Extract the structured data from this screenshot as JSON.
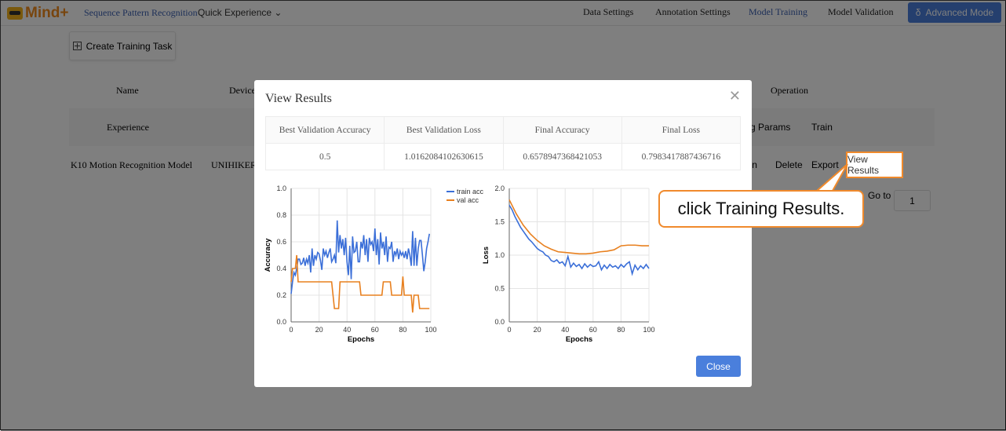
{
  "app": {
    "logo_text": "Mind+",
    "nav_left": [
      "Sequence Pattern Recognition",
      "Quick Experience"
    ],
    "nav_steps": [
      "Data Settings",
      "Annotation Settings",
      "Model Training",
      "Model Validation"
    ],
    "active_step": "Model Training",
    "advanced_label": "Advanced Mode",
    "accent": "#4a7fdc"
  },
  "page": {
    "create_label": "Create Training Task",
    "headers": {
      "name": "Name",
      "device": "Device",
      "operation": "Operation"
    },
    "rows": [
      {
        "name": "Experience",
        "ops": [
          "Config Params",
          "Train"
        ]
      },
      {
        "name": "K10 Motion Recognition Model",
        "device": "UNIHIKER",
        "ops": [
          "Train",
          "Delete",
          "Export",
          "View Results"
        ]
      }
    ],
    "goto_label": "Go to",
    "goto_value": "1"
  },
  "modal": {
    "title": "View Results",
    "columns": [
      "Best Validation Accuracy",
      "Best Validation Loss",
      "Final Accuracy",
      "Final Loss"
    ],
    "values": [
      "0.5",
      "1.0162084102630615",
      "0.6578947368421053",
      "0.7983417887436716"
    ],
    "close_label": "Close"
  },
  "callout": {
    "text": "click Training Results.",
    "color": "#f08a2c"
  },
  "chart_data": [
    {
      "type": "line",
      "xlabel": "Epochs",
      "ylabel": "Accuracy",
      "xlim": [
        0,
        100
      ],
      "ylim": [
        0,
        1
      ],
      "xticks": [
        0,
        20,
        40,
        60,
        80,
        100
      ],
      "yticks": [
        0,
        0.2,
        0.4,
        0.6,
        0.8,
        1.0
      ],
      "grid": true,
      "legend": "top-right",
      "series": [
        {
          "name": "train acc",
          "color": "#3b6fd8",
          "values": [
            0.21,
            0.3,
            0.37,
            0.35,
            0.4,
            0.47,
            0.47,
            0.43,
            0.44,
            0.48,
            0.42,
            0.47,
            0.44,
            0.5,
            0.37,
            0.55,
            0.42,
            0.5,
            0.47,
            0.52,
            0.51,
            0.46,
            0.39,
            0.55,
            0.5,
            0.53,
            0.48,
            0.52,
            0.55,
            0.45,
            0.47,
            0.5,
            0.44,
            0.76,
            0.52,
            0.65,
            0.55,
            0.62,
            0.5,
            0.63,
            0.45,
            0.35,
            0.57,
            0.32,
            0.64,
            0.52,
            0.53,
            0.6,
            0.45,
            0.45,
            0.6,
            0.55,
            0.65,
            0.5,
            0.62,
            0.45,
            0.63,
            0.58,
            0.6,
            0.53,
            0.7,
            0.5,
            0.62,
            0.43,
            0.67,
            0.55,
            0.6,
            0.5,
            0.64,
            0.45,
            0.56,
            0.55,
            0.6,
            0.45,
            0.53,
            0.5,
            0.55,
            0.47,
            0.53,
            0.5,
            0.52,
            0.48,
            0.53,
            0.47,
            0.55,
            0.5,
            0.42,
            0.68,
            0.42,
            0.63,
            0.42,
            0.55,
            0.61,
            0.61,
            0.5,
            0.38,
            0.45,
            0.55,
            0.6,
            0.66
          ]
        },
        {
          "name": "val acc",
          "color": "#e8801f",
          "values": [
            0.3,
            0.4,
            0.4,
            0.4,
            0.5,
            0.3,
            0.3,
            0.3,
            0.3,
            0.3,
            0.3,
            0.3,
            0.3,
            0.3,
            0.3,
            0.3,
            0.3,
            0.3,
            0.3,
            0.3,
            0.3,
            0.3,
            0.3,
            0.3,
            0.3,
            0.3,
            0.3,
            0.3,
            0.3,
            0.3,
            0.2,
            0.1,
            0.1,
            0.1,
            0.1,
            0.3,
            0.3,
            0.3,
            0.3,
            0.3,
            0.3,
            0.3,
            0.3,
            0.3,
            0.3,
            0.3,
            0.3,
            0.3,
            0.3,
            0.3,
            0.2,
            0.2,
            0.2,
            0.2,
            0.2,
            0.2,
            0.2,
            0.2,
            0.2,
            0.2,
            0.2,
            0.2,
            0.2,
            0.2,
            0.2,
            0.2,
            0.3,
            0.3,
            0.3,
            0.3,
            0.3,
            0.3,
            0.2,
            0.2,
            0.2,
            0.2,
            0.2,
            0.2,
            0.2,
            0.2,
            0.34,
            0.2,
            0.2,
            0.2,
            0.2,
            0.2,
            0.2,
            0.07,
            0.2,
            0.2,
            0.2,
            0.2,
            0.1,
            0.1,
            0.1,
            0.1,
            0.1,
            0.1,
            0.1,
            0.1
          ]
        }
      ]
    },
    {
      "type": "line",
      "xlabel": "Epochs",
      "ylabel": "Loss",
      "xlim": [
        0,
        100
      ],
      "ylim": [
        0,
        2
      ],
      "xticks": [
        0,
        20,
        40,
        60,
        80,
        100
      ],
      "yticks": [
        0,
        0.5,
        1.0,
        1.5,
        2.0
      ],
      "grid": true,
      "series": [
        {
          "color": "#3b6fd8",
          "x": [
            0,
            2,
            4,
            6,
            8,
            10,
            12,
            14,
            16,
            18,
            20,
            22,
            24,
            26,
            28,
            30,
            32,
            34,
            36,
            38,
            40,
            42,
            44,
            46,
            48,
            50,
            52,
            54,
            56,
            58,
            60,
            62,
            64,
            66,
            68,
            70,
            72,
            74,
            76,
            78,
            80,
            82,
            84,
            86,
            88,
            90,
            92,
            94,
            96,
            98,
            100
          ],
          "values": [
            1.75,
            1.68,
            1.58,
            1.5,
            1.42,
            1.36,
            1.3,
            1.24,
            1.2,
            1.15,
            1.1,
            1.07,
            1.05,
            1.0,
            0.98,
            0.92,
            0.9,
            0.93,
            0.88,
            0.9,
            0.84,
            0.98,
            0.82,
            0.88,
            0.83,
            0.86,
            0.8,
            0.87,
            0.82,
            0.86,
            0.83,
            0.84,
            0.9,
            0.78,
            0.85,
            0.8,
            0.86,
            0.82,
            0.84,
            0.8,
            0.86,
            0.82,
            0.87,
            0.9,
            0.72,
            0.85,
            0.78,
            0.84,
            0.8,
            0.86,
            0.8
          ]
        },
        {
          "color": "#e8801f",
          "x": [
            0,
            5,
            10,
            15,
            20,
            25,
            30,
            35,
            40,
            45,
            50,
            55,
            60,
            65,
            70,
            75,
            80,
            85,
            90,
            95,
            100
          ],
          "values": [
            1.83,
            1.62,
            1.45,
            1.32,
            1.22,
            1.14,
            1.09,
            1.05,
            1.04,
            1.03,
            1.02,
            1.02,
            1.03,
            1.05,
            1.06,
            1.08,
            1.14,
            1.15,
            1.15,
            1.14,
            1.14
          ]
        }
      ]
    }
  ]
}
